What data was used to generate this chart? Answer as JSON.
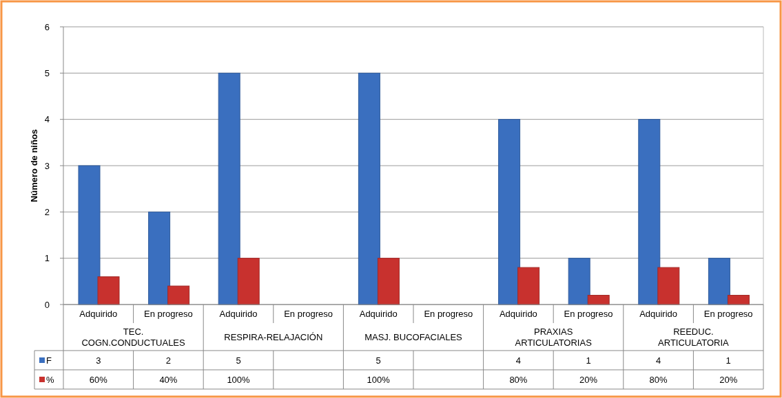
{
  "chart_data": {
    "type": "bar",
    "ylabel": "Número de niños",
    "categories": [
      "Adquirido",
      "En progreso",
      "Adquirido",
      "En progreso",
      "Adquirido",
      "En progreso",
      "Adquirido",
      "En progreso",
      "Adquirido",
      "En progreso"
    ],
    "series": [
      {
        "name": "F",
        "color": "#3a6fbf",
        "values": [
          3,
          2,
          5,
          null,
          5,
          null,
          4,
          1,
          4,
          1
        ],
        "value_labels": [
          "3",
          "2",
          "5",
          null,
          "5",
          null,
          "4",
          "1",
          "4",
          "1"
        ]
      },
      {
        "name": "%",
        "color": "#c8312e",
        "values": [
          0.6,
          0.4,
          1,
          null,
          1,
          null,
          0.8,
          0.2,
          0.8,
          0.2
        ],
        "value_labels": [
          "60%",
          "40%",
          "100%",
          null,
          "100%",
          null,
          "80%",
          "20%",
          "80%",
          "20%"
        ]
      }
    ],
    "annotations": [
      "TEC.\nCOGN.CONDUCTUALES",
      "RESPIRA-RELAJACIÓN",
      "MASJ. BUCOFACIALES",
      "PRAXIAS\nARTICULATORIAS",
      "REEDUC.\nARTICULATORIA"
    ],
    "ylim": [
      0,
      6
    ],
    "yticks": [
      0,
      1,
      2,
      3,
      4,
      5,
      6
    ],
    "grid": "y",
    "legend": "bottom"
  }
}
